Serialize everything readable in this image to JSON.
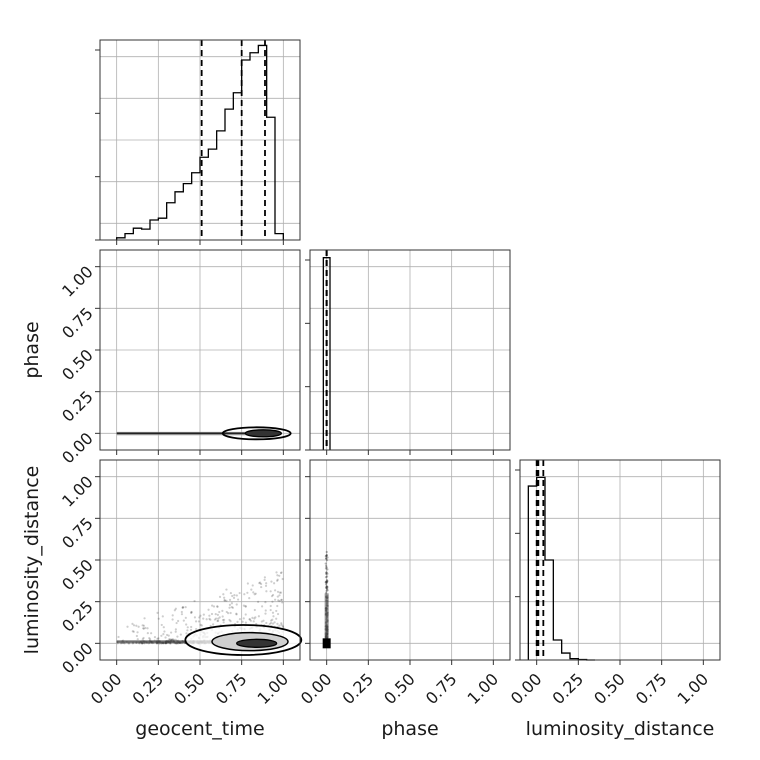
{
  "chart_data": {
    "type": "corner",
    "parameters": [
      "geocent_time",
      "phase",
      "luminosity_distance"
    ],
    "axis_labels": {
      "x": [
        "geocent_time",
        "phase",
        "luminosity_distance"
      ],
      "y": [
        "",
        "phase",
        "luminosity_distance"
      ]
    },
    "tick_values": [
      0.0,
      0.25,
      0.5,
      0.75,
      1.0
    ],
    "tick_labels": [
      "0.00",
      "0.25",
      "0.50",
      "0.75",
      "1.00"
    ],
    "axis_range": [
      -0.1,
      1.1
    ],
    "grid": true,
    "histograms": {
      "geocent_time": {
        "bin_width": 0.05,
        "bin_starts": [
          0.0,
          0.05,
          0.1,
          0.15,
          0.2,
          0.25,
          0.3,
          0.35,
          0.4,
          0.45,
          0.5,
          0.55,
          0.6,
          0.65,
          0.7,
          0.75,
          0.8,
          0.85,
          0.9,
          0.95
        ],
        "heights": [
          0.012,
          0.035,
          0.065,
          0.06,
          0.11,
          0.12,
          0.205,
          0.265,
          0.31,
          0.37,
          0.455,
          0.5,
          0.6,
          0.72,
          0.81,
          0.99,
          1.03,
          1.07,
          0.675,
          0.035
        ],
        "quantiles": [
          0.51,
          0.75,
          0.89
        ]
      },
      "phase": {
        "bin_width": 0.04,
        "bin_starts": [
          -0.02
        ],
        "heights": [
          1.0
        ],
        "quantiles": [
          0.0,
          0.0,
          0.0
        ]
      },
      "luminosity_distance": {
        "bin_width": 0.05,
        "bin_starts": [
          -0.05,
          0.0,
          0.05,
          0.1,
          0.15,
          0.2,
          0.25,
          0.3
        ],
        "heights": [
          1.0,
          1.05,
          0.575,
          0.115,
          0.04,
          0.008,
          0.003,
          0.0
        ],
        "quantiles": [
          0.0,
          0.01,
          0.04
        ]
      }
    },
    "y_tick_labels_shown": [
      "0.00",
      "0.25",
      "0.50",
      "0.75",
      "1.00"
    ]
  }
}
